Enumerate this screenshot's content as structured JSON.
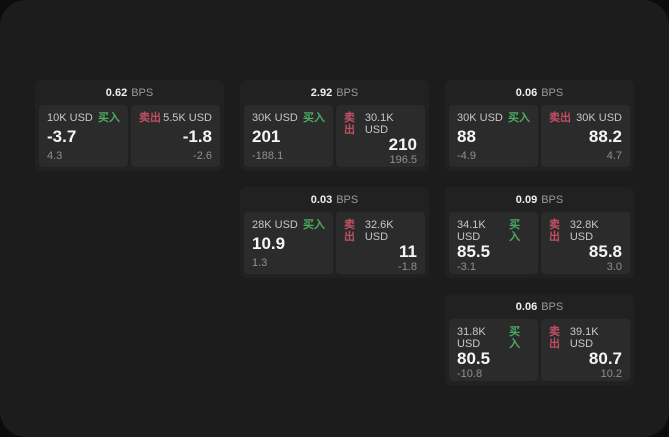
{
  "labels": {
    "buy": "买入",
    "sell": "卖出",
    "bps_unit": "BPS"
  },
  "colors": {
    "buy_green": "#4aab61",
    "sell_red": "#c04f64",
    "panel_bg": "#1c1c1c",
    "card_bg": "#212121",
    "cell_bg": "#2b2b2b"
  },
  "cards": [
    {
      "bps": "0.62",
      "buy": {
        "amount": "10K USD",
        "value": "-3.7",
        "sub": "4.3"
      },
      "sell": {
        "amount": "5.5K USD",
        "value": "-1.8",
        "sub": "-2.6"
      }
    },
    {
      "bps": "2.92",
      "buy": {
        "amount": "30K USD",
        "value": "201",
        "sub": "-188.1"
      },
      "sell": {
        "amount": "30.1K USD",
        "value": "210",
        "sub": "196.5"
      }
    },
    {
      "bps": "0.06",
      "buy": {
        "amount": "30K USD",
        "value": "88",
        "sub": "-4.9"
      },
      "sell": {
        "amount": "30K USD",
        "value": "88.2",
        "sub": "4.7"
      }
    },
    {
      "bps": "0.03",
      "buy": {
        "amount": "28K USD",
        "value": "10.9",
        "sub": "1.3"
      },
      "sell": {
        "amount": "32.6K USD",
        "value": "11",
        "sub": "-1.8"
      }
    },
    {
      "bps": "0.09",
      "buy": {
        "amount": "34.1K USD",
        "value": "85.5",
        "sub": "-3.1"
      },
      "sell": {
        "amount": "32.8K USD",
        "value": "85.8",
        "sub": "3.0"
      }
    },
    {
      "bps": "0.06",
      "buy": {
        "amount": "31.8K USD",
        "value": "80.5",
        "sub": "-10.8"
      },
      "sell": {
        "amount": "39.1K USD",
        "value": "80.7",
        "sub": "10.2"
      }
    }
  ]
}
